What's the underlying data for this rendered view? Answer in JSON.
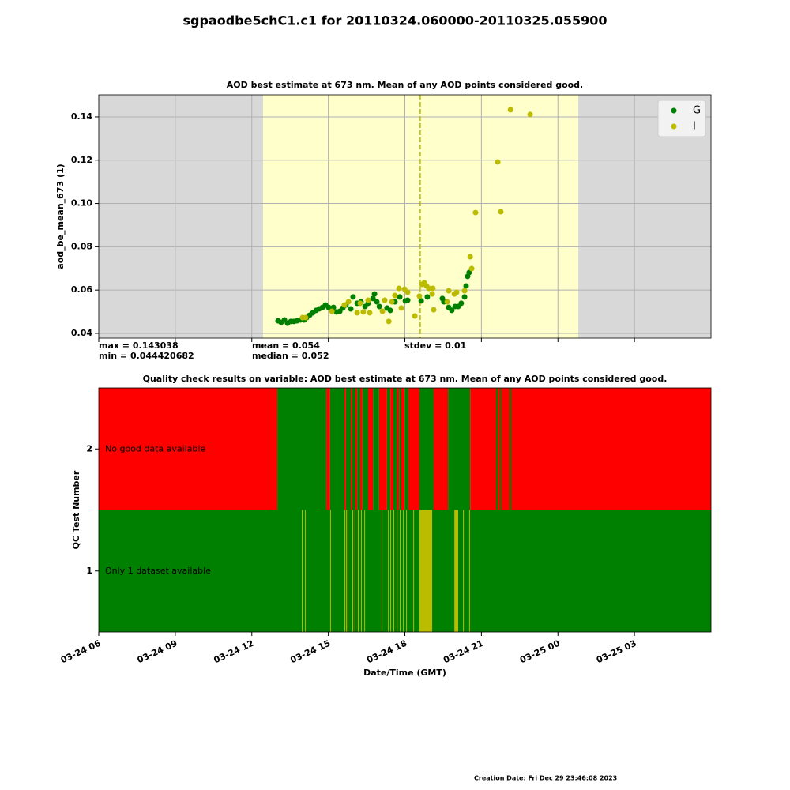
{
  "title": "sgpaodbe5chC1.c1 for 20110324.060000-20110325.055900",
  "footer": "Creation Date: Fri Dec 29 23:46:08 2023",
  "chart_data": [
    {
      "type": "scatter",
      "title": "AOD best estimate at 673 nm. Mean of any AOD points considered good.",
      "y_label": "aod_be_mean_673 (1)",
      "xlim": [
        6,
        30
      ],
      "xticks": [
        6,
        9,
        12,
        15,
        18,
        21,
        24,
        27
      ],
      "ylim": [
        0.0378,
        0.1502
      ],
      "yticks": [
        0.04,
        0.06,
        0.08,
        0.1,
        0.12,
        0.14
      ],
      "grid": true,
      "legend": "upper right",
      "background": "#d8d8d8",
      "highlight_color": "#ffffcc",
      "highlight_span": [
        12.44,
        24.8
      ],
      "vline": 18.6,
      "vline_color": "#bbbb00",
      "stats": [
        "max = 0.143038",
        "min = 0.044420682",
        "mean = 0.054",
        "median = 0.052",
        "stdev = 0.01"
      ],
      "series": [
        {
          "name": "G",
          "color": "#008000",
          "x": [
            13.03,
            13.15,
            13.28,
            13.4,
            13.53,
            13.65,
            13.77,
            13.9,
            14.05,
            14.15,
            14.27,
            14.39,
            14.52,
            14.64,
            14.77,
            14.89,
            15.01,
            15.2,
            15.32,
            15.45,
            15.57,
            15.69,
            15.88,
            15.97,
            16.13,
            16.28,
            16.44,
            16.56,
            16.75,
            16.81,
            16.9,
            17.0,
            17.3,
            17.43,
            17.61,
            17.8,
            18.02,
            18.11,
            18.64,
            18.88,
            19.47,
            19.53,
            19.72,
            19.84,
            19.97,
            20.09,
            20.21,
            20.34,
            20.4,
            20.46,
            20.52
          ],
          "values": [
            0.0458,
            0.0451,
            0.0462,
            0.0447,
            0.0455,
            0.0455,
            0.0458,
            0.0462,
            0.0462,
            0.0473,
            0.0484,
            0.0495,
            0.0506,
            0.0513,
            0.052,
            0.0531,
            0.052,
            0.052,
            0.0499,
            0.0502,
            0.0517,
            0.0531,
            0.0513,
            0.0568,
            0.0539,
            0.0546,
            0.0524,
            0.0539,
            0.0561,
            0.0582,
            0.0546,
            0.0524,
            0.0517,
            0.0506,
            0.0546,
            0.0568,
            0.055,
            0.0553,
            0.055,
            0.0568,
            0.0561,
            0.0546,
            0.052,
            0.0506,
            0.0524,
            0.0524,
            0.0539,
            0.0568,
            0.0619,
            0.0663,
            0.0681
          ]
        },
        {
          "name": "I",
          "color": "#bbbb00",
          "x": [
            13.99,
            14.11,
            15.14,
            15.63,
            15.79,
            16.13,
            16.25,
            16.37,
            16.56,
            16.62,
            17.12,
            17.21,
            17.37,
            17.49,
            17.61,
            17.77,
            17.86,
            17.99,
            18.11,
            18.39,
            18.57,
            18.67,
            18.76,
            18.85,
            18.94,
            19.07,
            19.13,
            19.1,
            19.66,
            19.72,
            19.94,
            20.03,
            20.34,
            20.56,
            20.62,
            20.77,
            21.64,
            21.76,
            22.14,
            22.91
          ],
          "values": [
            0.0473,
            0.0473,
            0.0502,
            0.0531,
            0.0546,
            0.0495,
            0.0539,
            0.0499,
            0.0553,
            0.0495,
            0.0502,
            0.0553,
            0.0455,
            0.0546,
            0.0575,
            0.0608,
            0.0517,
            0.0604,
            0.059,
            0.048,
            0.0572,
            0.0626,
            0.0634,
            0.0619,
            0.0608,
            0.0582,
            0.0509,
            0.0608,
            0.0546,
            0.0597,
            0.0582,
            0.059,
            0.0597,
            0.0754,
            0.0699,
            0.0958,
            0.1192,
            0.0962,
            0.1433,
            0.1411
          ]
        }
      ]
    },
    {
      "type": "qc",
      "title": "Quality check results on variable: AOD best estimate at 673 nm. Mean of any AOD points considered good.",
      "x_label": "Date/Time (GMT)",
      "y_label": "QC Test Number",
      "xlim": [
        6,
        30
      ],
      "xticks": [
        {
          "value": 6,
          "label": "03-24 06"
        },
        {
          "value": 9,
          "label": "03-24 09"
        },
        {
          "value": 12,
          "label": "03-24 12"
        },
        {
          "value": 15,
          "label": "03-24 15"
        },
        {
          "value": 18,
          "label": "03-24 18"
        },
        {
          "value": 21,
          "label": "03-24 21"
        },
        {
          "value": 24,
          "label": "03-25 00"
        },
        {
          "value": 27,
          "label": "03-25 03"
        }
      ],
      "ylim": [
        0.5,
        2.5
      ],
      "yticks": [
        1,
        2
      ],
      "rows": [
        {
          "test": 2,
          "label": "No good data available",
          "segments": [
            {
              "start": 6,
              "end": 13.0,
              "color": "#ff0000"
            },
            {
              "start": 13.0,
              "end": 14.92,
              "color": "#008000"
            },
            {
              "start": 14.92,
              "end": 15.07,
              "color": "#ff0000"
            },
            {
              "start": 15.07,
              "end": 15.63,
              "color": "#008000"
            },
            {
              "start": 15.63,
              "end": 15.69,
              "color": "#ff0000"
            },
            {
              "start": 15.69,
              "end": 15.88,
              "color": "#008000"
            },
            {
              "start": 15.88,
              "end": 15.94,
              "color": "#ff0000"
            },
            {
              "start": 15.94,
              "end": 16.06,
              "color": "#008000"
            },
            {
              "start": 16.06,
              "end": 16.13,
              "color": "#ff0000"
            },
            {
              "start": 16.13,
              "end": 16.25,
              "color": "#008000"
            },
            {
              "start": 16.25,
              "end": 16.34,
              "color": "#ff0000"
            },
            {
              "start": 16.34,
              "end": 16.56,
              "color": "#008000"
            },
            {
              "start": 16.56,
              "end": 16.75,
              "color": "#ff0000"
            },
            {
              "start": 16.75,
              "end": 16.99,
              "color": "#008000"
            },
            {
              "start": 16.99,
              "end": 17.3,
              "color": "#ff0000"
            },
            {
              "start": 17.3,
              "end": 17.43,
              "color": "#008000"
            },
            {
              "start": 17.43,
              "end": 17.55,
              "color": "#ff0000"
            },
            {
              "start": 17.55,
              "end": 17.68,
              "color": "#008000"
            },
            {
              "start": 17.68,
              "end": 17.77,
              "color": "#ff0000"
            },
            {
              "start": 17.77,
              "end": 17.86,
              "color": "#008000"
            },
            {
              "start": 17.86,
              "end": 17.99,
              "color": "#ff0000"
            },
            {
              "start": 17.99,
              "end": 18.14,
              "color": "#008000"
            },
            {
              "start": 18.14,
              "end": 18.57,
              "color": "#ff0000"
            },
            {
              "start": 18.57,
              "end": 19.13,
              "color": "#008000"
            },
            {
              "start": 19.13,
              "end": 19.69,
              "color": "#ff0000"
            },
            {
              "start": 19.69,
              "end": 20.56,
              "color": "#008000"
            },
            {
              "start": 20.56,
              "end": 30,
              "color": "#ff0000"
            },
            {
              "start": 21.58,
              "end": 21.64,
              "color": "#008000"
            },
            {
              "start": 21.73,
              "end": 21.79,
              "color": "#008000"
            },
            {
              "start": 22.1,
              "end": 22.17,
              "color": "#008000"
            }
          ]
        },
        {
          "test": 1,
          "label": "Only 1 dataset available",
          "segments": [
            {
              "start": 6,
              "end": 30,
              "color": "#008000"
            },
            {
              "start": 13.96,
              "end": 13.99,
              "color": "#bbbb00"
            },
            {
              "start": 14.08,
              "end": 14.11,
              "color": "#bbbb00"
            },
            {
              "start": 15.07,
              "end": 15.1,
              "color": "#bbbb00"
            },
            {
              "start": 15.63,
              "end": 15.66,
              "color": "#bbbb00"
            },
            {
              "start": 15.69,
              "end": 15.72,
              "color": "#bbbb00"
            },
            {
              "start": 15.75,
              "end": 15.78,
              "color": "#bbbb00"
            },
            {
              "start": 15.94,
              "end": 15.97,
              "color": "#bbbb00"
            },
            {
              "start": 16.03,
              "end": 16.06,
              "color": "#bbbb00"
            },
            {
              "start": 16.16,
              "end": 16.19,
              "color": "#bbbb00"
            },
            {
              "start": 16.28,
              "end": 16.31,
              "color": "#bbbb00"
            },
            {
              "start": 16.41,
              "end": 16.44,
              "color": "#bbbb00"
            },
            {
              "start": 17.09,
              "end": 17.12,
              "color": "#bbbb00"
            },
            {
              "start": 17.34,
              "end": 17.37,
              "color": "#bbbb00"
            },
            {
              "start": 17.43,
              "end": 17.46,
              "color": "#bbbb00"
            },
            {
              "start": 17.55,
              "end": 17.58,
              "color": "#bbbb00"
            },
            {
              "start": 17.68,
              "end": 17.71,
              "color": "#bbbb00"
            },
            {
              "start": 17.8,
              "end": 17.83,
              "color": "#bbbb00"
            },
            {
              "start": 17.92,
              "end": 17.95,
              "color": "#bbbb00"
            },
            {
              "start": 18.05,
              "end": 18.08,
              "color": "#bbbb00"
            },
            {
              "start": 18.33,
              "end": 18.36,
              "color": "#bbbb00"
            },
            {
              "start": 18.57,
              "end": 19.07,
              "color": "#bbbb00"
            },
            {
              "start": 19.94,
              "end": 20.09,
              "color": "#bbbb00"
            },
            {
              "start": 20.28,
              "end": 20.31,
              "color": "#bbbb00"
            },
            {
              "start": 20.52,
              "end": 20.55,
              "color": "#bbbb00"
            }
          ]
        }
      ]
    }
  ]
}
